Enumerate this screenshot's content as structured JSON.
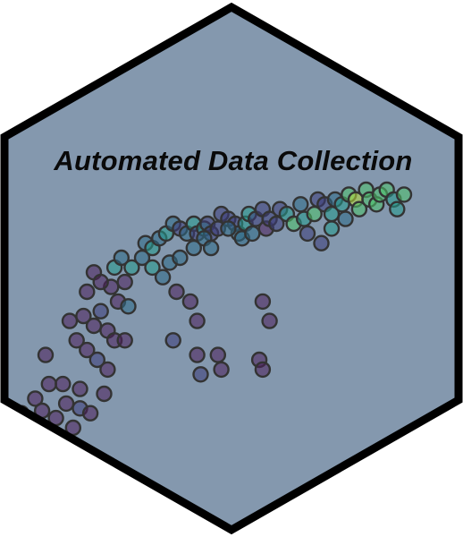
{
  "logo": {
    "title": "Automated Data Collection",
    "colors": {
      "background": "#8498ae",
      "border": "#000000",
      "text": "#0a0a0a",
      "point_palette": [
        "#4b1d5a",
        "#3b3b78",
        "#2b6a86",
        "#229a8c",
        "#4cc36a",
        "#b8dc36"
      ]
    }
  },
  "chart_data": {
    "type": "scatter",
    "color_scale": "viridis",
    "points": [
      [
        10,
        10,
        0
      ],
      [
        18,
        16,
        0
      ],
      [
        22,
        11,
        0
      ],
      [
        30,
        8,
        0
      ],
      [
        36,
        14,
        0
      ],
      [
        40,
        4,
        0
      ],
      [
        44,
        12,
        1
      ],
      [
        26,
        22,
        0
      ],
      [
        24,
        34,
        0
      ],
      [
        34,
        22,
        0
      ],
      [
        44,
        20,
        0
      ],
      [
        50,
        10,
        0
      ],
      [
        58,
        18,
        0
      ],
      [
        60,
        28,
        0
      ],
      [
        54,
        32,
        1
      ],
      [
        48,
        36,
        0
      ],
      [
        42,
        40,
        0
      ],
      [
        38,
        48,
        0
      ],
      [
        46,
        50,
        0
      ],
      [
        52,
        46,
        0
      ],
      [
        56,
        52,
        1
      ],
      [
        60,
        44,
        0
      ],
      [
        64,
        40,
        0
      ],
      [
        66,
        56,
        0
      ],
      [
        72,
        54,
        2
      ],
      [
        62,
        62,
        0
      ],
      [
        70,
        64,
        0
      ],
      [
        48,
        60,
        0
      ],
      [
        52,
        68,
        0
      ],
      [
        56,
        64,
        0
      ],
      [
        64,
        70,
        3
      ],
      [
        68,
        74,
        2
      ],
      [
        74,
        70,
        3
      ],
      [
        80,
        74,
        2
      ],
      [
        82,
        80,
        2
      ],
      [
        86,
        78,
        3
      ],
      [
        90,
        82,
        2
      ],
      [
        94,
        84,
        3
      ],
      [
        98,
        88,
        2
      ],
      [
        102,
        86,
        1
      ],
      [
        106,
        84,
        2
      ],
      [
        110,
        88,
        3
      ],
      [
        112,
        84,
        1
      ],
      [
        116,
        86,
        3
      ],
      [
        118,
        88,
        1
      ],
      [
        120,
        84,
        1
      ],
      [
        124,
        86,
        1
      ],
      [
        126,
        92,
        1
      ],
      [
        130,
        90,
        1
      ],
      [
        134,
        88,
        1
      ],
      [
        136,
        84,
        2
      ],
      [
        140,
        88,
        3
      ],
      [
        142,
        92,
        3
      ],
      [
        146,
        90,
        1
      ],
      [
        150,
        94,
        1
      ],
      [
        152,
        86,
        0
      ],
      [
        154,
        90,
        1
      ],
      [
        158,
        88,
        1
      ],
      [
        160,
        94,
        1
      ],
      [
        164,
        92,
        3
      ],
      [
        168,
        88,
        4
      ],
      [
        172,
        96,
        2
      ],
      [
        174,
        90,
        3
      ],
      [
        176,
        84,
        1
      ],
      [
        180,
        92,
        4
      ],
      [
        182,
        98,
        1
      ],
      [
        186,
        96,
        1
      ],
      [
        190,
        92,
        3
      ],
      [
        192,
        98,
        2
      ],
      [
        196,
        96,
        3
      ],
      [
        198,
        90,
        2
      ],
      [
        200,
        100,
        4
      ],
      [
        204,
        98,
        5
      ],
      [
        206,
        94,
        4
      ],
      [
        210,
        102,
        4
      ],
      [
        212,
        98,
        4
      ],
      [
        216,
        96,
        4
      ],
      [
        218,
        100,
        4
      ],
      [
        222,
        102,
        4
      ],
      [
        226,
        98,
        3
      ],
      [
        228,
        94,
        3
      ],
      [
        232,
        100,
        4
      ],
      [
        184,
        80,
        1
      ],
      [
        190,
        86,
        3
      ],
      [
        100,
        60,
        0
      ],
      [
        108,
        56,
        0
      ],
      [
        112,
        48,
        0
      ],
      [
        98,
        40,
        1
      ],
      [
        112,
        34,
        0
      ],
      [
        124,
        34,
        0
      ],
      [
        126,
        28,
        0
      ],
      [
        150,
        56,
        0
      ],
      [
        154,
        48,
        0
      ],
      [
        148,
        32,
        0
      ],
      [
        150,
        28,
        0
      ],
      [
        114,
        26,
        1
      ],
      [
        70,
        40,
        0
      ],
      [
        86,
        70,
        3
      ],
      [
        96,
        72,
        2
      ],
      [
        92,
        66,
        2
      ],
      [
        102,
        74,
        2
      ],
      [
        110,
        78,
        2
      ],
      [
        116,
        82,
        2
      ],
      [
        120,
        78,
        2
      ],
      [
        138,
        82,
        2
      ],
      [
        144,
        84,
        2
      ],
      [
        130,
        86,
        2
      ]
    ]
  }
}
